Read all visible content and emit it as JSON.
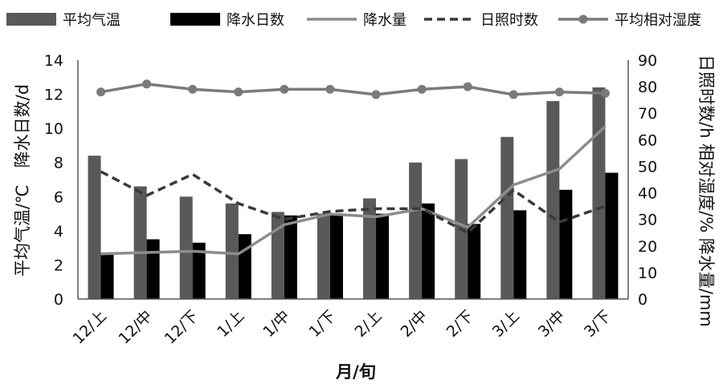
{
  "chart_data": {
    "type": "bar+line",
    "legend": [
      {
        "label": "平均气温",
        "kind": "bar",
        "color": "#595959"
      },
      {
        "label": "降水日数",
        "kind": "bar",
        "color": "#000000"
      },
      {
        "label": "降水量",
        "kind": "line",
        "color": "#8c8c8c"
      },
      {
        "label": "日照时数",
        "kind": "dashed-line",
        "color": "#3a3a3a"
      },
      {
        "label": "平均相对湿度",
        "kind": "line-marker",
        "color": "#7a7a7a"
      }
    ],
    "categories": [
      "12/上",
      "12/中",
      "12/下",
      "1/上",
      "1/中",
      "1/下",
      "2/上",
      "2/中",
      "2/下",
      "3/上",
      "3/中",
      "3/下"
    ],
    "xlabel": "月/旬",
    "y_left": {
      "label": "平均气温/℃　降水日数/d",
      "ylim": [
        0,
        14
      ],
      "ticks": [
        0,
        2,
        4,
        6,
        8,
        10,
        12,
        14
      ]
    },
    "y_right": {
      "label": "日照时数/h 相对湿度/% 降水量/mm",
      "ylim": [
        0,
        90
      ],
      "ticks": [
        0,
        10,
        20,
        30,
        40,
        50,
        60,
        70,
        80,
        90
      ]
    },
    "series": [
      {
        "name": "平均气温",
        "axis": "left",
        "type": "bar",
        "values": [
          8.4,
          6.6,
          6.0,
          5.6,
          5.1,
          5.0,
          5.9,
          8.0,
          8.2,
          9.5,
          11.6,
          12.4
        ]
      },
      {
        "name": "降水日数",
        "axis": "left",
        "type": "bar",
        "values": [
          2.6,
          3.5,
          3.3,
          3.8,
          4.9,
          5.0,
          5.0,
          5.6,
          4.4,
          5.2,
          6.4,
          7.4
        ]
      },
      {
        "name": "降水量",
        "axis": "right",
        "type": "line",
        "values": [
          17,
          17.5,
          18,
          17,
          28,
          32,
          31,
          34,
          27,
          43,
          49,
          65
        ]
      },
      {
        "name": "日照时数",
        "axis": "right",
        "type": "dashed-line",
        "values": [
          48,
          39,
          47,
          36,
          30,
          33,
          34,
          34,
          25,
          41,
          29,
          35
        ]
      },
      {
        "name": "平均相对湿度",
        "axis": "right",
        "type": "line-marker",
        "values": [
          78,
          81,
          79,
          78,
          79,
          79,
          77,
          79,
          80,
          77,
          78,
          77.5
        ]
      }
    ]
  }
}
